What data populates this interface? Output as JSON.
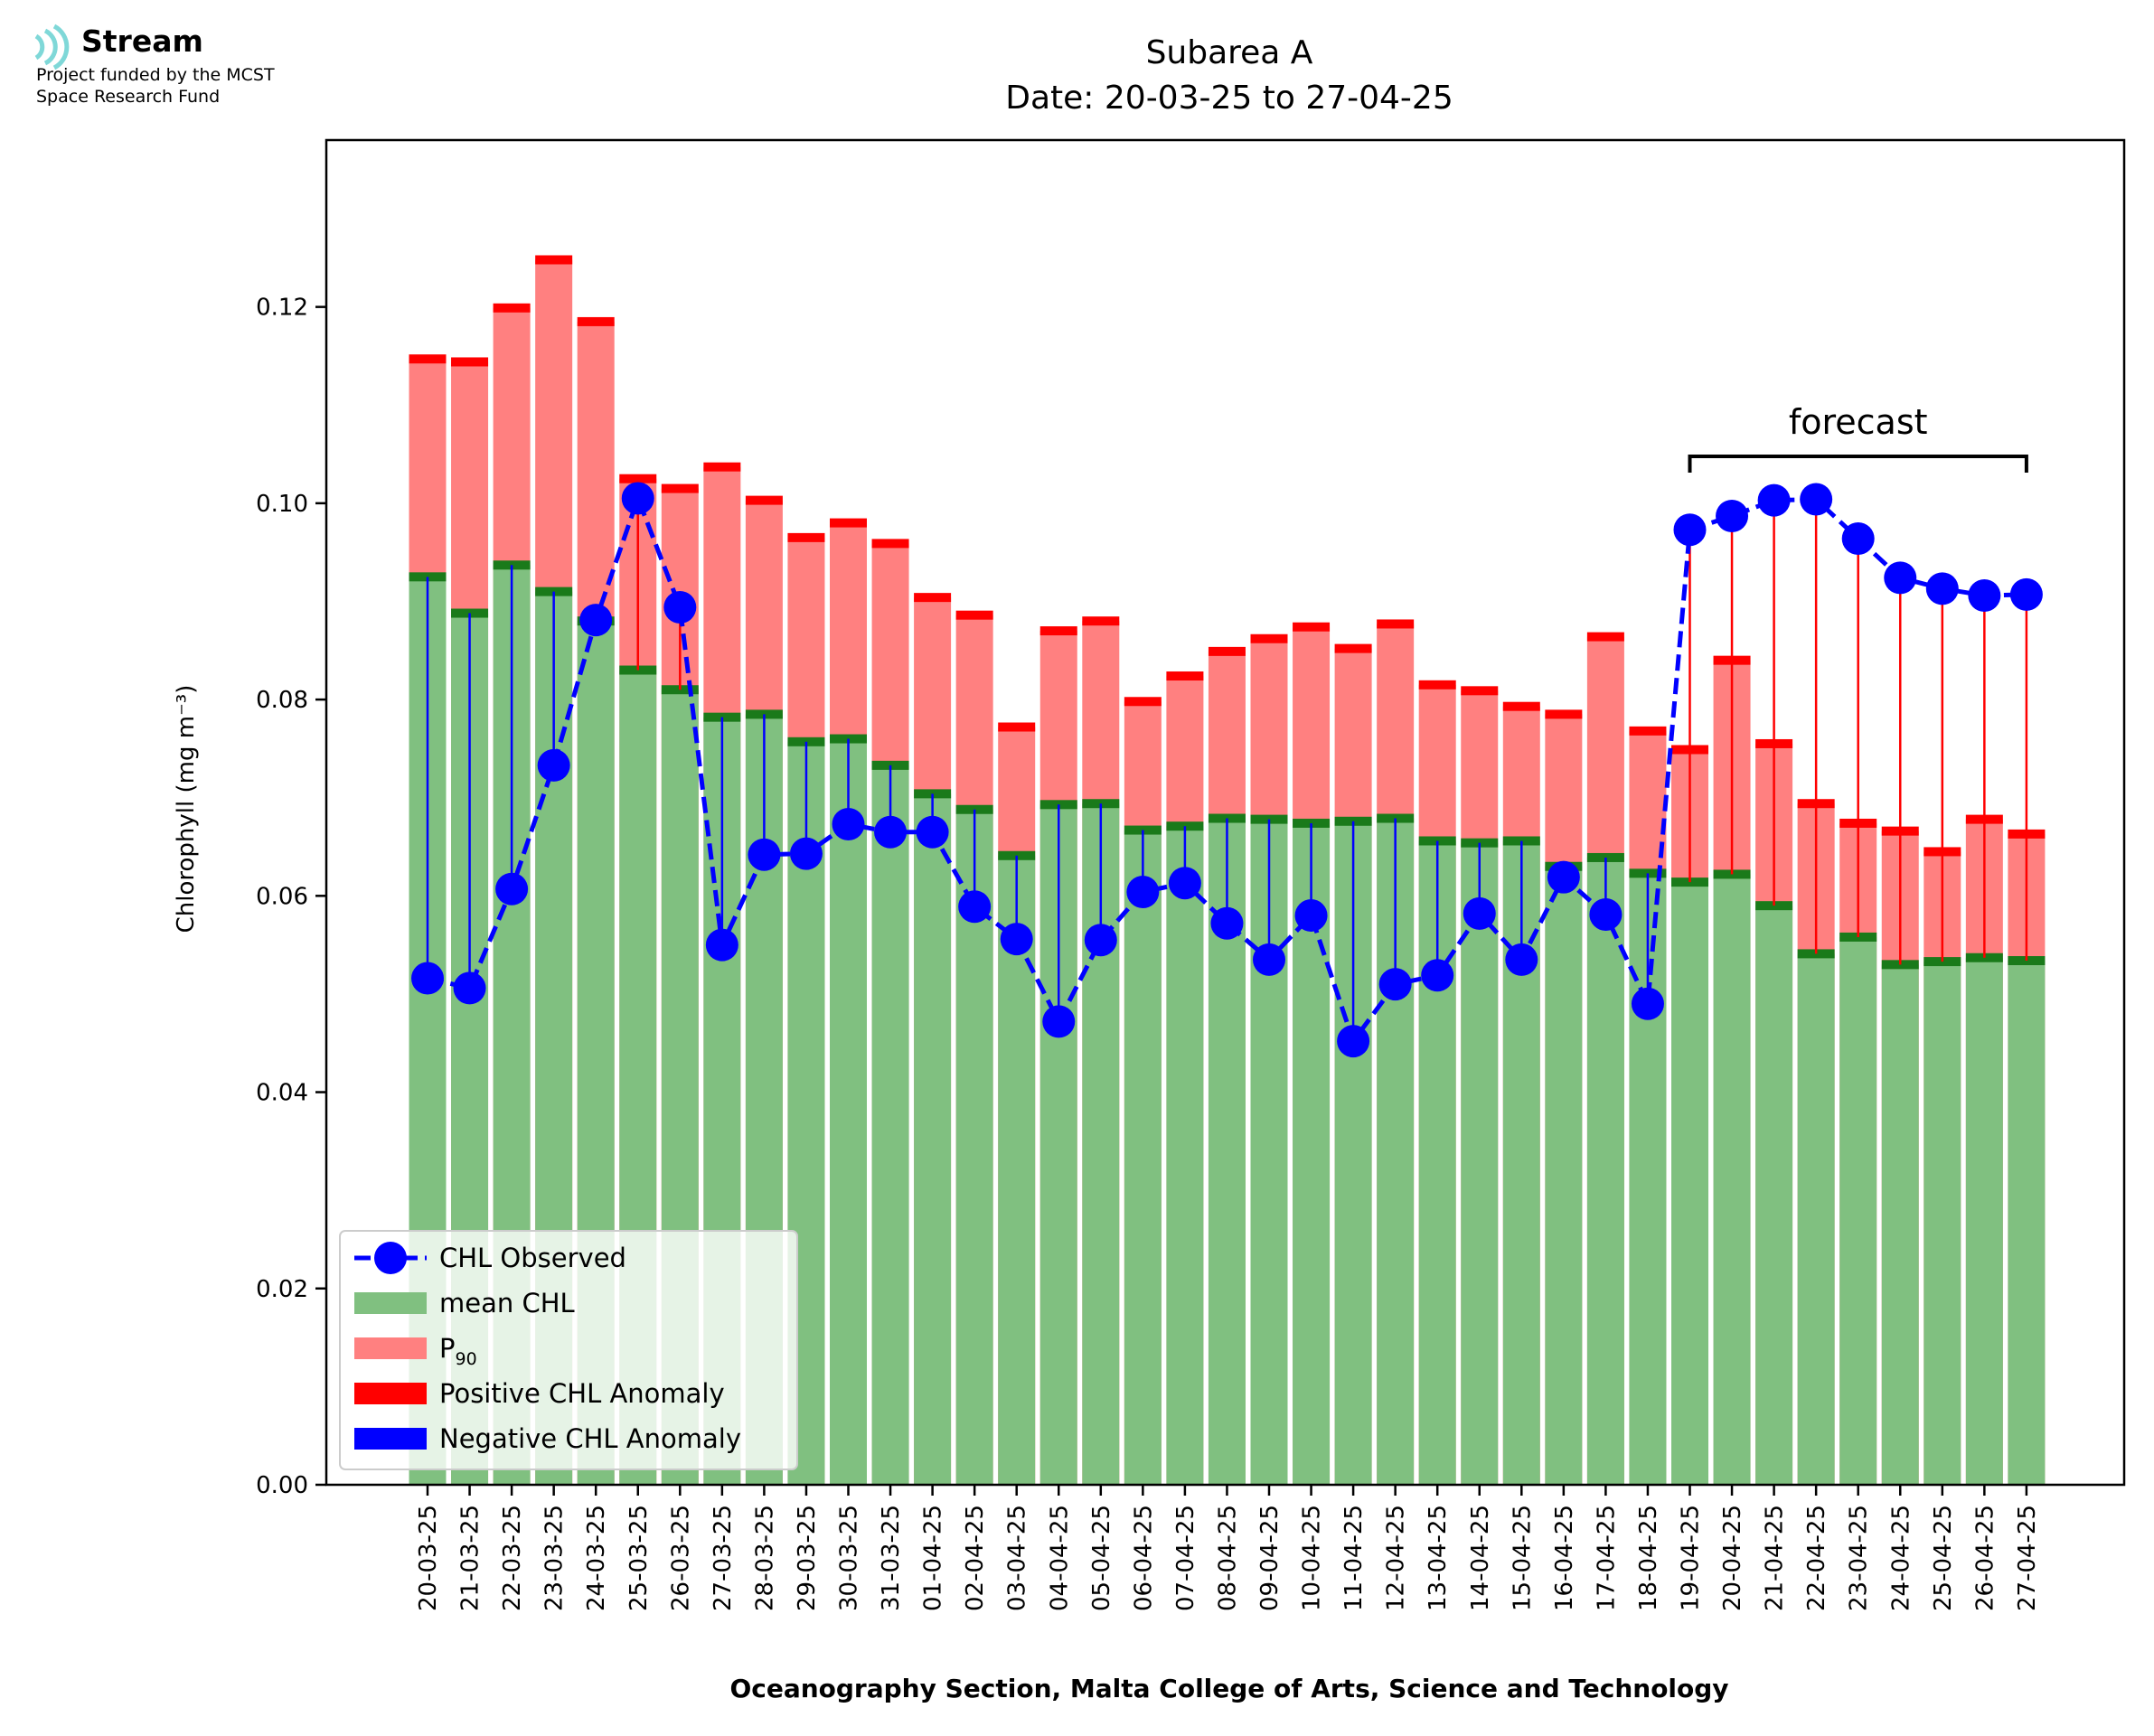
{
  "logo": {
    "name": "Stream",
    "funding_line1": "Project funded by the MCST",
    "funding_line2": "Space Research Fund",
    "icon": "stream-waves-icon"
  },
  "chart_data": {
    "type": "bar",
    "title_line1": "Subarea A",
    "title_line2": "Date: 20-03-25 to 27-04-25",
    "ylabel": "Chlorophyll (mg m⁻³)",
    "xlabel": "Oceanography Section, Malta College of Arts, Science and Technology",
    "ylim": [
      0,
      0.137
    ],
    "yticks": [
      "0.00",
      "0.02",
      "0.04",
      "0.06",
      "0.08",
      "0.10",
      "0.12"
    ],
    "grid": false,
    "legend_position": "lower-left",
    "colors": {
      "mean": "#80c080",
      "mean_edge": "#1a7a1a",
      "p90": "#ff8080",
      "p90_edge": "#ff0000",
      "observed": "#0000ff",
      "positive_anomaly": "#ff0000",
      "negative_anomaly": "#0000ff"
    },
    "categories": [
      "20-03-25",
      "21-03-25",
      "22-03-25",
      "23-03-25",
      "24-03-25",
      "25-03-25",
      "26-03-25",
      "27-03-25",
      "28-03-25",
      "29-03-25",
      "30-03-25",
      "31-03-25",
      "01-04-25",
      "02-04-25",
      "03-04-25",
      "04-04-25",
      "05-04-25",
      "06-04-25",
      "07-04-25",
      "08-04-25",
      "09-04-25",
      "10-04-25",
      "11-04-25",
      "12-04-25",
      "13-04-25",
      "14-04-25",
      "15-04-25",
      "16-04-25",
      "17-04-25",
      "18-04-25",
      "19-04-25",
      "20-04-25",
      "21-04-25",
      "22-04-25",
      "23-04-25",
      "24-04-25",
      "25-04-25",
      "26-04-25",
      "27-04-25"
    ],
    "series": [
      {
        "name": "mean CHL",
        "values": [
          0.0925,
          0.0888,
          0.0937,
          0.091,
          0.088,
          0.083,
          0.081,
          0.0782,
          0.0785,
          0.0757,
          0.076,
          0.0733,
          0.0704,
          0.0688,
          0.0641,
          0.0693,
          0.0694,
          0.0667,
          0.0671,
          0.0679,
          0.0678,
          0.0674,
          0.0676,
          0.0679,
          0.0656,
          0.0654,
          0.0656,
          0.063,
          0.0639,
          0.0623,
          0.0614,
          0.0622,
          0.059,
          0.0541,
          0.0558,
          0.053,
          0.0533,
          0.0537,
          0.0534
        ]
      },
      {
        "name": "P₉₀",
        "values": [
          0.1147,
          0.1144,
          0.1199,
          0.1248,
          0.1185,
          0.1025,
          0.1015,
          0.1037,
          0.1003,
          0.0965,
          0.098,
          0.0959,
          0.0904,
          0.0886,
          0.0772,
          0.087,
          0.088,
          0.0798,
          0.0824,
          0.0849,
          0.0862,
          0.0874,
          0.0852,
          0.0877,
          0.0815,
          0.0809,
          0.0793,
          0.0785,
          0.0864,
          0.0768,
          0.0749,
          0.084,
          0.0755,
          0.0694,
          0.0674,
          0.0666,
          0.0645,
          0.0678,
          0.0663
        ]
      },
      {
        "name": "CHL Observed",
        "values": [
          0.0516,
          0.0506,
          0.0607,
          0.0733,
          0.0881,
          0.1005,
          0.0894,
          0.055,
          0.0642,
          0.0643,
          0.0673,
          0.0665,
          0.0665,
          0.0589,
          0.0556,
          0.0472,
          0.0555,
          0.0604,
          0.0613,
          0.0572,
          0.0535,
          0.058,
          0.0452,
          0.051,
          0.0519,
          0.0582,
          0.0535,
          0.0619,
          0.0581,
          0.049,
          0.0973,
          0.0987,
          0.1003,
          0.1004,
          0.0964,
          0.0924,
          0.0913,
          0.0906,
          0.0907
        ]
      }
    ],
    "forecast_start_index": 30,
    "forecast_label": "forecast",
    "legend": [
      {
        "label": "CHL Observed",
        "kind": "line"
      },
      {
        "label": "mean CHL",
        "kind": "patch-mean"
      },
      {
        "label": "P",
        "sub": "90",
        "kind": "patch-p90"
      },
      {
        "label": "Positive CHL Anomaly",
        "kind": "patch-pos"
      },
      {
        "label": "Negative CHL Anomaly",
        "kind": "patch-neg"
      }
    ]
  }
}
